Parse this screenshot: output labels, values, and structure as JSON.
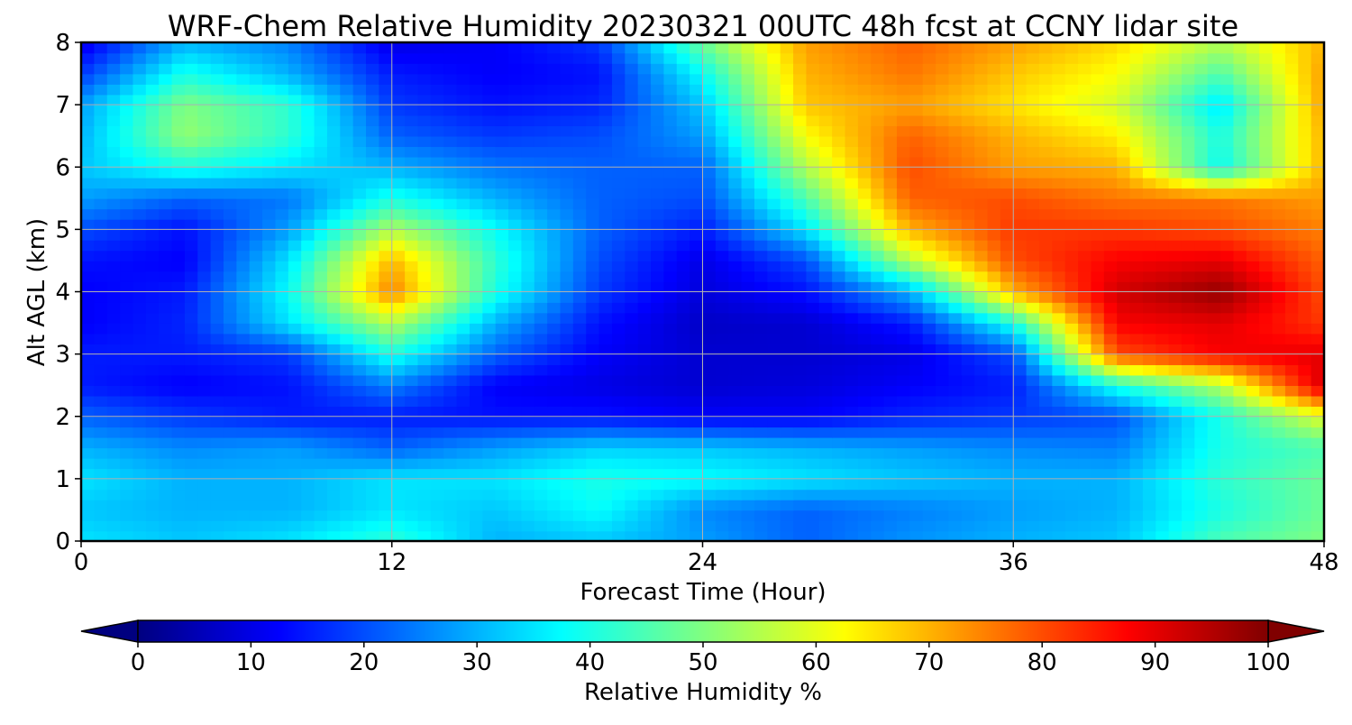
{
  "chart_data": {
    "type": "heatmap",
    "title": "WRF-Chem Relative Humidity 20230321 00UTC 48h fcst at CCNY lidar site",
    "xlabel": "Forecast Time (Hour)",
    "ylabel": "Alt AGL (km)",
    "xlim": [
      0,
      48
    ],
    "ylim": [
      0,
      8
    ],
    "x_ticks": [
      "0",
      "12",
      "24",
      "36",
      "48"
    ],
    "y_ticks": [
      "0",
      "1",
      "2",
      "3",
      "4",
      "5",
      "6",
      "7",
      "8"
    ],
    "grid": true,
    "colormap": "jet",
    "colorbar": {
      "label": "Relative Humidity %",
      "range": [
        0,
        100
      ],
      "ticks": [
        "0",
        "10",
        "20",
        "30",
        "40",
        "50",
        "60",
        "70",
        "80",
        "90",
        "100"
      ],
      "extend": "both",
      "placement": "bottom"
    },
    "grid_x": [
      0,
      4,
      8,
      12,
      16,
      20,
      24,
      28,
      32,
      36,
      40,
      44,
      48
    ],
    "grid_y": [
      0,
      0.5,
      1,
      1.5,
      2,
      2.5,
      3,
      3.5,
      4,
      4.5,
      5,
      5.5,
      6,
      6.5,
      7,
      7.5,
      8
    ],
    "values": [
      [
        35,
        32,
        35,
        42,
        30,
        32,
        28,
        22,
        27,
        30,
        32,
        45,
        50
      ],
      [
        32,
        30,
        30,
        35,
        32,
        38,
        26,
        22,
        25,
        28,
        30,
        40,
        48
      ],
      [
        35,
        30,
        30,
        35,
        35,
        40,
        38,
        35,
        32,
        30,
        30,
        42,
        48
      ],
      [
        30,
        26,
        28,
        22,
        28,
        33,
        32,
        30,
        28,
        26,
        25,
        40,
        45
      ],
      [
        22,
        18,
        15,
        15,
        14,
        14,
        12,
        12,
        16,
        18,
        20,
        40,
        60
      ],
      [
        15,
        12,
        14,
        25,
        12,
        10,
        8,
        9,
        12,
        15,
        40,
        55,
        92
      ],
      [
        15,
        15,
        18,
        40,
        22,
        12,
        8,
        8,
        10,
        20,
        80,
        88,
        90
      ],
      [
        12,
        16,
        35,
        55,
        30,
        14,
        7,
        8,
        15,
        40,
        88,
        90,
        82
      ],
      [
        12,
        15,
        38,
        75,
        40,
        18,
        9,
        14,
        30,
        70,
        92,
        98,
        80
      ],
      [
        14,
        12,
        35,
        70,
        42,
        20,
        10,
        20,
        55,
        80,
        88,
        90,
        78
      ],
      [
        20,
        14,
        28,
        55,
        38,
        22,
        15,
        35,
        70,
        82,
        82,
        80,
        75
      ],
      [
        28,
        22,
        24,
        40,
        30,
        22,
        20,
        45,
        78,
        80,
        76,
        76,
        72
      ],
      [
        32,
        40,
        35,
        30,
        24,
        22,
        22,
        55,
        80,
        72,
        70,
        38,
        70
      ],
      [
        30,
        52,
        42,
        22,
        18,
        20,
        28,
        62,
        78,
        70,
        64,
        40,
        70
      ],
      [
        28,
        50,
        42,
        18,
        14,
        16,
        32,
        68,
        72,
        65,
        58,
        35,
        72
      ],
      [
        18,
        40,
        30,
        15,
        12,
        14,
        38,
        70,
        76,
        68,
        62,
        45,
        72
      ],
      [
        10,
        30,
        25,
        10,
        12,
        18,
        48,
        72,
        78,
        72,
        66,
        55,
        70
      ]
    ]
  }
}
